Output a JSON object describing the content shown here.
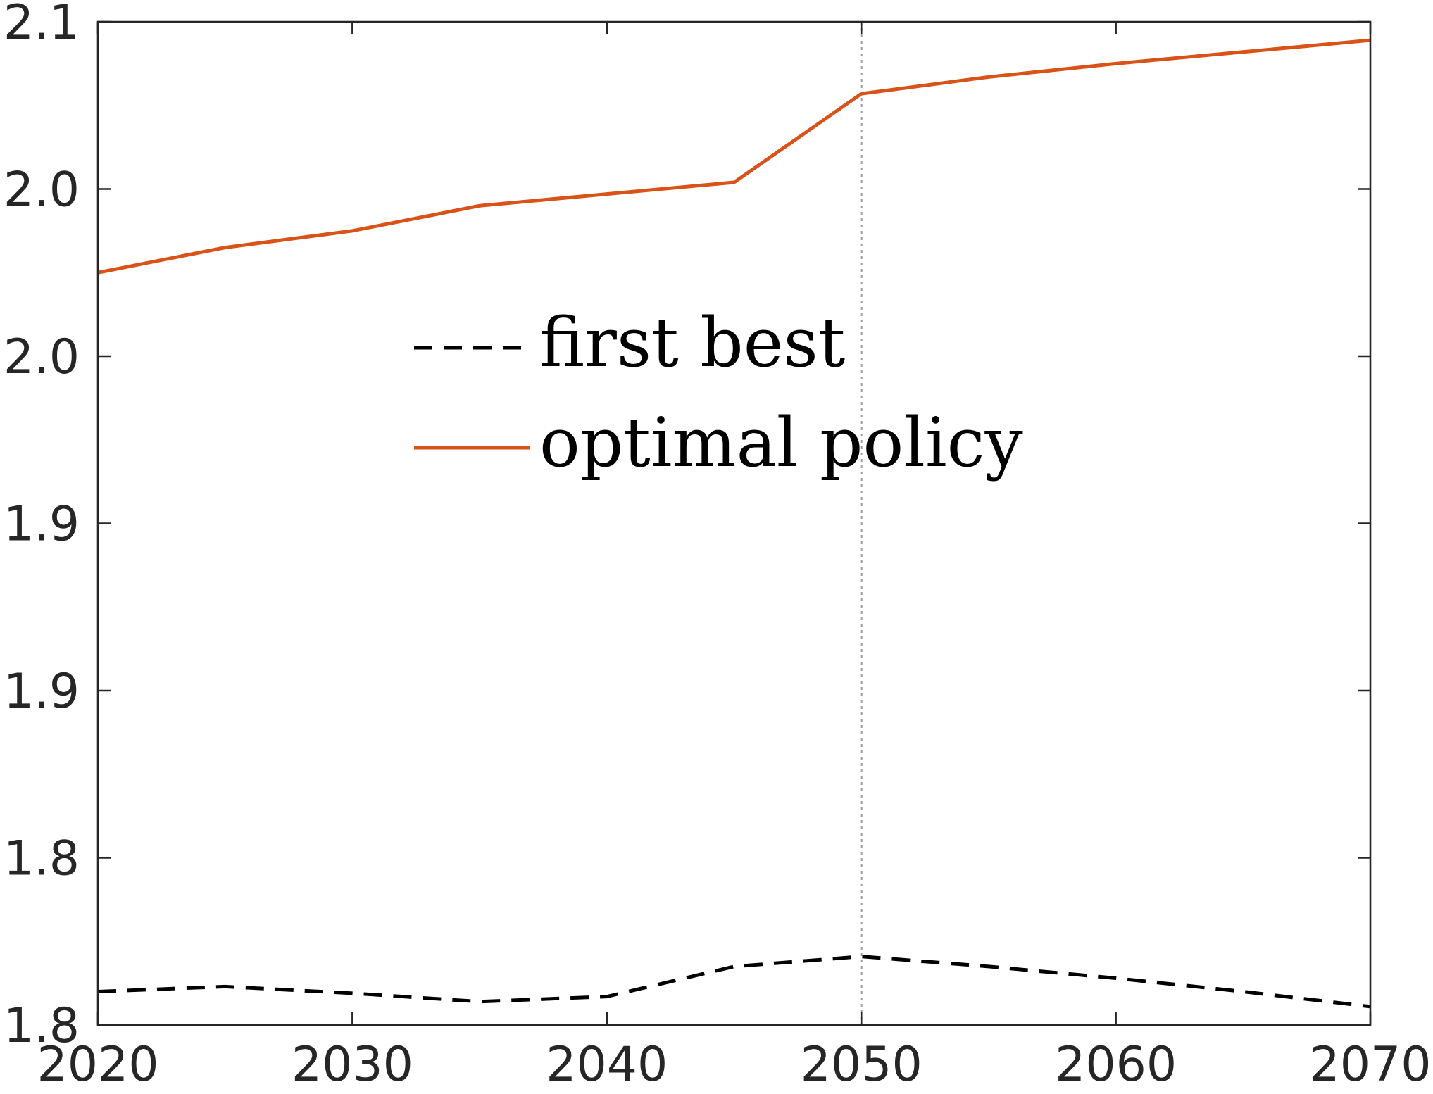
{
  "chart_data": {
    "type": "line",
    "title": "",
    "xlabel": "",
    "ylabel": "",
    "x": [
      2020,
      2025,
      2030,
      2035,
      2040,
      2045,
      2050,
      2055,
      2060,
      2065,
      2070
    ],
    "series": [
      {
        "name": "first best",
        "style": "dashed",
        "color": "#000000",
        "values": [
          1.785,
          1.7865,
          1.7845,
          1.782,
          1.7835,
          1.7925,
          1.7955,
          1.7925,
          1.789,
          1.785,
          1.7805
        ]
      },
      {
        "name": "optimal policy",
        "style": "solid",
        "color": "#D95319",
        "values": [
          2.0,
          2.0075,
          2.0125,
          2.02,
          2.0235,
          2.027,
          2.0535,
          2.0585,
          2.0625,
          2.066,
          2.0695
        ]
      }
    ],
    "xlim": [
      2020,
      2070
    ],
    "ylim": [
      1.775,
      2.075
    ],
    "xticks": [
      2020,
      2030,
      2040,
      2050,
      2060,
      2070
    ],
    "xtick_labels": [
      "2020",
      "2030",
      "2040",
      "2050",
      "2060",
      "2070"
    ],
    "yticks": [
      1.775,
      1.825,
      1.875,
      1.925,
      1.975,
      2.025,
      2.075
    ],
    "ytick_labels": [
      "1.8",
      "1.8",
      "1.9",
      "1.9",
      "2.0",
      "2.0",
      "2.1"
    ],
    "vline": {
      "x": 2050,
      "style": "dotted",
      "color": "#9E9E9E"
    },
    "legend": {
      "position": "center-left",
      "box": false
    },
    "grid": false
  }
}
